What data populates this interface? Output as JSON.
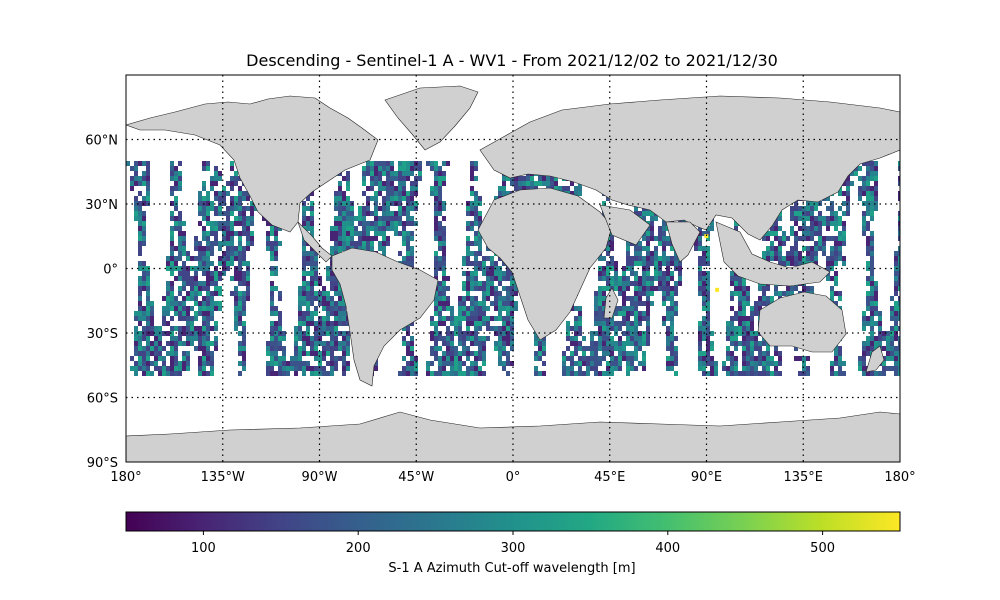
{
  "title": "Descending - Sentinel-1 A - WV1 - From 2021/12/02 to 2021/12/30",
  "map": {
    "lon_range": [
      -180,
      180
    ],
    "lat_range": [
      -90,
      90
    ],
    "lon_ticks": [
      {
        "value": -180,
        "label": "180°"
      },
      {
        "value": -135,
        "label": "135°W"
      },
      {
        "value": -90,
        "label": "90°W"
      },
      {
        "value": -45,
        "label": "45°W"
      },
      {
        "value": 0,
        "label": "0°"
      },
      {
        "value": 45,
        "label": "45°E"
      },
      {
        "value": 90,
        "label": "90°E"
      },
      {
        "value": 135,
        "label": "135°E"
      },
      {
        "value": 180,
        "label": "180°"
      }
    ],
    "lat_ticks": [
      {
        "value": 60,
        "label": "60°N"
      },
      {
        "value": 30,
        "label": "30°N"
      },
      {
        "value": 0,
        "label": "0°"
      },
      {
        "value": -30,
        "label": "30°S"
      },
      {
        "value": -60,
        "label": "60°S"
      },
      {
        "value": -90,
        "label": "90°S"
      }
    ],
    "gridlines": true,
    "land_color": "#d0d0d0",
    "coast_color": "#222222",
    "data_lat_extent": [
      -50,
      50
    ],
    "colormap": "viridis"
  },
  "colorbar": {
    "label": "S-1 A Azimuth Cut-off wavelength [m]",
    "range": [
      50,
      550
    ],
    "ticks": [
      100,
      200,
      300,
      400,
      500
    ],
    "orientation": "horizontal"
  }
}
